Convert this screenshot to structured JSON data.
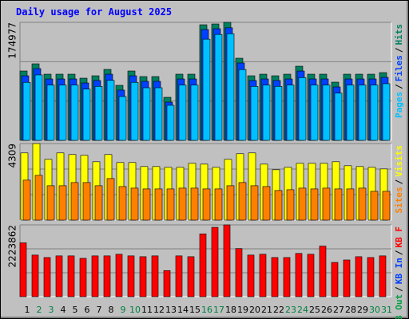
{
  "title": "Daily usage for August 2025",
  "chart_data": [
    {
      "type": "bar",
      "ylim": [
        0,
        174977
      ],
      "yticks": [
        174977
      ],
      "grid": true,
      "separator": "/",
      "series": [
        {
          "name": "Hits",
          "color": "#008060",
          "values": [
            102834,
            113472,
            98106,
            98106,
            98106,
            92196,
            95742,
            105198,
            81558,
            102834,
            94560,
            94560,
            63828,
            98106,
            98106,
            171390,
            172572,
            174977,
            121746,
            95742,
            98106,
            95742,
            98106,
            109926,
            98106,
            98106,
            86286,
            98106,
            98106,
            98106,
            100470
          ]
        },
        {
          "name": "Files",
          "color": "#0040ff",
          "values": [
            95700,
            106400,
            91000,
            91000,
            91000,
            85100,
            88700,
            98100,
            74500,
            95700,
            87500,
            87500,
            56700,
            91000,
            91000,
            164300,
            165500,
            166900,
            114700,
            88700,
            91000,
            88700,
            91000,
            102800,
            91000,
            91000,
            79200,
            91000,
            91000,
            91000,
            93400
          ]
        },
        {
          "name": "Pages",
          "color": "#00c0ff",
          "values": [
            86000,
            97000,
            82000,
            82000,
            82000,
            76000,
            80000,
            89000,
            65000,
            86000,
            78000,
            78000,
            52000,
            82000,
            82000,
            150000,
            157000,
            158000,
            105000,
            80000,
            82000,
            80000,
            82000,
            93000,
            82000,
            82000,
            70000,
            82000,
            82000,
            82000,
            84000
          ]
        }
      ]
    },
    {
      "type": "bar",
      "ylim": [
        0,
        4309
      ],
      "yticks": [
        4309
      ],
      "grid": true,
      "separator": "/",
      "series": [
        {
          "name": "Visits",
          "color": "#ffff00",
          "values": [
            3780,
            4309,
            3420,
            3780,
            3690,
            3645,
            3285,
            3690,
            3240,
            3240,
            3015,
            3015,
            2970,
            2970,
            3195,
            3150,
            2970,
            3420,
            3735,
            3780,
            3150,
            2835,
            2970,
            3195,
            3195,
            3195,
            3285,
            3060,
            3015,
            2970,
            2880
          ]
        },
        {
          "name": "Sites",
          "color": "#ff8000",
          "values": [
            2250,
            2520,
            1935,
            1935,
            2115,
            2115,
            1935,
            2340,
            1890,
            1800,
            1755,
            1755,
            1755,
            1800,
            1800,
            1755,
            1755,
            1935,
            2115,
            1935,
            1890,
            1665,
            1710,
            1800,
            1755,
            1800,
            1755,
            1755,
            1800,
            1620,
            1620
          ]
        }
      ]
    },
    {
      "type": "bar",
      "ylim": [
        0,
        2223862
      ],
      "yticks": [
        2223862
      ],
      "grid": true,
      "separator": "/",
      "categories": [
        "1",
        "2",
        "3",
        "4",
        "5",
        "6",
        "7",
        "8",
        "9",
        "10",
        "11",
        "12",
        "13",
        "14",
        "15",
        "16",
        "17",
        "18",
        "19",
        "20",
        "21",
        "22",
        "23",
        "24",
        "25",
        "26",
        "27",
        "28",
        "29",
        "30",
        "31"
      ],
      "category_colors": [
        "#000000",
        "#008040",
        "#008040",
        "#000000",
        "#000000",
        "#000000",
        "#000000",
        "#000000",
        "#008040",
        "#008040",
        "#000000",
        "#000000",
        "#000000",
        "#000000",
        "#000000",
        "#008040",
        "#008040",
        "#000000",
        "#000000",
        "#000000",
        "#000000",
        "#000000",
        "#008040",
        "#008040",
        "#000000",
        "#000000",
        "#000000",
        "#000000",
        "#000000",
        "#008040",
        "#008040"
      ],
      "series": [
        {
          "name": "KB F",
          "color": "#ff0000",
          "values": [
            1667900,
            1288800,
            1213000,
            1263600,
            1263600,
            1187700,
            1263600,
            1263600,
            1314100,
            1263600,
            1238300,
            1263600,
            808700,
            1263600,
            1238300,
            1945900,
            2148000,
            2223862,
            1491000,
            1288800,
            1314100,
            1213000,
            1213000,
            1339400,
            1314100,
            1566800,
            1061400,
            1137200,
            1238300,
            1213000,
            1263600
          ]
        },
        {
          "name": "KB In",
          "color": "#0040ff"
        },
        {
          "name": "KB Out",
          "color": "#00a040"
        }
      ]
    }
  ]
}
